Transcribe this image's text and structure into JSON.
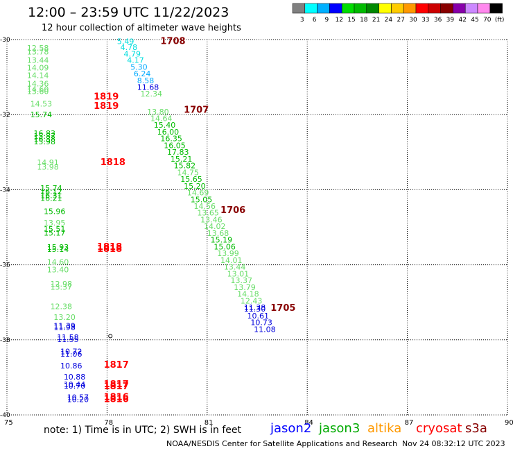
{
  "header": {
    "title": "12:00 – 23:59 UTC 11/22/2023",
    "subtitle": "12 hour collection of altimeter wave heights"
  },
  "legend_scale": {
    "labels": [
      "3",
      "6",
      "9",
      "12",
      "15",
      "18",
      "21",
      "24",
      "27",
      "30",
      "33",
      "36",
      "39",
      "42",
      "45",
      "70",
      "(ft)"
    ],
    "colors": [
      "#808080",
      "#00ffff",
      "#00b0ff",
      "#0000ff",
      "#00dd00",
      "#00bb00",
      "#008800",
      "#ffff00",
      "#ffcc00",
      "#ff9900",
      "#ff0000",
      "#cc0000",
      "#880000",
      "#8800aa",
      "#cc88ff",
      "#ff88ee",
      "#000000"
    ]
  },
  "footer": {
    "note": "note:  1) Time is in UTC; 2) SWH is in feet",
    "satellites": [
      {
        "name": "jason2",
        "color": "#0000ff"
      },
      {
        "name": "jason3",
        "color": "#00aa00"
      },
      {
        "name": "altika",
        "color": "#ff9900"
      },
      {
        "name": "cryosat",
        "color": "#ff0000"
      },
      {
        "name": "s3a",
        "color": "#880000"
      }
    ],
    "credit": "NOAA/NESDIS Center for Satellite Applications and Research",
    "timestamp": "Nov 24 08:32:12 UTC 2023"
  },
  "chart_data": {
    "type": "scatter",
    "xlim": [
      75,
      90
    ],
    "ylim": [
      -40,
      -30
    ],
    "x_ticks": [
      "75",
      "78",
      "81",
      "84",
      "87",
      "90"
    ],
    "y_ticks": [
      "-30",
      "-32",
      "-34",
      "-36",
      "-38",
      "-40"
    ],
    "grid": true,
    "points": [
      {
        "x": 75.6,
        "y": -30.3,
        "v": "12.58",
        "c": "#66dd66"
      },
      {
        "x": 75.6,
        "y": -30.4,
        "v": "13.78",
        "c": "#66dd66"
      },
      {
        "x": 75.6,
        "y": -30.62,
        "v": "13.44",
        "c": "#66dd66"
      },
      {
        "x": 75.6,
        "y": -30.82,
        "v": "14.09",
        "c": "#66dd66"
      },
      {
        "x": 75.6,
        "y": -31.03,
        "v": "14.14",
        "c": "#66dd66"
      },
      {
        "x": 75.6,
        "y": -31.25,
        "v": "14.36",
        "c": "#66dd66"
      },
      {
        "x": 75.6,
        "y": -31.4,
        "v": "14.60",
        "c": "#66dd66"
      },
      {
        "x": 75.6,
        "y": -31.45,
        "v": "13.60",
        "c": "#66dd66"
      },
      {
        "x": 75.7,
        "y": -31.78,
        "v": "14.53",
        "c": "#66dd66"
      },
      {
        "x": 75.7,
        "y": -32.07,
        "v": "15.74",
        "c": "#00bb00"
      },
      {
        "x": 75.8,
        "y": -32.57,
        "v": "16.83",
        "c": "#00bb00"
      },
      {
        "x": 75.8,
        "y": -32.64,
        "v": "15.87",
        "c": "#00bb00"
      },
      {
        "x": 75.8,
        "y": -32.72,
        "v": "16.38",
        "c": "#00bb00"
      },
      {
        "x": 75.8,
        "y": -32.79,
        "v": "15.98",
        "c": "#00bb00"
      },
      {
        "x": 75.9,
        "y": -33.35,
        "v": "14.91",
        "c": "#66dd66"
      },
      {
        "x": 75.9,
        "y": -33.47,
        "v": "13.98",
        "c": "#66dd66"
      },
      {
        "x": 76.0,
        "y": -34.03,
        "v": "15.74",
        "c": "#00bb00"
      },
      {
        "x": 76.0,
        "y": -34.12,
        "v": "16.12",
        "c": "#00bb00"
      },
      {
        "x": 76.0,
        "y": -34.22,
        "v": "16.31",
        "c": "#00bb00"
      },
      {
        "x": 76.0,
        "y": -34.3,
        "v": "16.21",
        "c": "#00bb00"
      },
      {
        "x": 76.1,
        "y": -34.65,
        "v": "15.96",
        "c": "#00bb00"
      },
      {
        "x": 76.1,
        "y": -34.95,
        "v": "13.95",
        "c": "#66dd66"
      },
      {
        "x": 76.1,
        "y": -35.12,
        "v": "15.51",
        "c": "#00bb00"
      },
      {
        "x": 76.1,
        "y": -35.22,
        "v": "15.17",
        "c": "#00bb00"
      },
      {
        "x": 76.2,
        "y": -35.6,
        "v": "15.93",
        "c": "#00bb00"
      },
      {
        "x": 76.2,
        "y": -35.66,
        "v": "15.14",
        "c": "#00bb00"
      },
      {
        "x": 76.2,
        "y": -36.0,
        "v": "14.60",
        "c": "#66dd66"
      },
      {
        "x": 76.2,
        "y": -36.2,
        "v": "13.40",
        "c": "#66dd66"
      },
      {
        "x": 76.3,
        "y": -36.58,
        "v": "12.98",
        "c": "#66dd66"
      },
      {
        "x": 76.3,
        "y": -36.66,
        "v": "13.37",
        "c": "#66dd66"
      },
      {
        "x": 76.3,
        "y": -37.18,
        "v": "12.38",
        "c": "#66dd66"
      },
      {
        "x": 76.4,
        "y": -37.47,
        "v": "13.20",
        "c": "#66dd66"
      },
      {
        "x": 76.4,
        "y": -37.7,
        "v": "11.39",
        "c": "#0000dd"
      },
      {
        "x": 76.4,
        "y": -37.74,
        "v": "11.98",
        "c": "#0000dd"
      },
      {
        "x": 76.5,
        "y": -38.0,
        "v": "11.58",
        "c": "#0000dd"
      },
      {
        "x": 76.5,
        "y": -38.06,
        "v": "11.55",
        "c": "#0000dd"
      },
      {
        "x": 76.6,
        "y": -38.38,
        "v": "10.72",
        "c": "#0000dd"
      },
      {
        "x": 76.6,
        "y": -38.45,
        "v": "11.06",
        "c": "#0000dd"
      },
      {
        "x": 76.6,
        "y": -38.76,
        "v": "10.86",
        "c": "#0000dd"
      },
      {
        "x": 76.7,
        "y": -39.06,
        "v": "10.88",
        "c": "#0000dd"
      },
      {
        "x": 76.7,
        "y": -39.26,
        "v": "10.44",
        "c": "#0000dd"
      },
      {
        "x": 76.7,
        "y": -39.3,
        "v": "10.70",
        "c": "#0000dd"
      },
      {
        "x": 76.8,
        "y": -39.6,
        "v": "10.57",
        "c": "#0000dd"
      },
      {
        "x": 76.8,
        "y": -39.66,
        "v": "10.20",
        "c": "#0000dd"
      },
      {
        "x": 77.6,
        "y": -31.6,
        "v": "1819",
        "c": "#ff0000",
        "big": true
      },
      {
        "x": 77.6,
        "y": -31.85,
        "v": "1819",
        "c": "#ff0000",
        "big": true
      },
      {
        "x": 77.8,
        "y": -33.35,
        "v": "1818",
        "c": "#ff0000",
        "big": true
      },
      {
        "x": 77.7,
        "y": -35.6,
        "v": "1818",
        "c": "#ff0000",
        "big": true
      },
      {
        "x": 77.7,
        "y": -35.66,
        "v": "1818",
        "c": "#ff0000",
        "big": true
      },
      {
        "x": 77.9,
        "y": -38.74,
        "v": "1817",
        "c": "#ff0000",
        "big": true
      },
      {
        "x": 77.9,
        "y": -39.26,
        "v": "1817",
        "c": "#ff0000",
        "big": true
      },
      {
        "x": 77.9,
        "y": -39.32,
        "v": "1817",
        "c": "#ff0000",
        "big": true
      },
      {
        "x": 77.9,
        "y": -39.6,
        "v": "1816",
        "c": "#ff0000",
        "big": true
      },
      {
        "x": 77.9,
        "y": -39.66,
        "v": "1816",
        "c": "#ff0000",
        "big": true
      },
      {
        "x": 78.3,
        "y": -30.12,
        "v": "5.49",
        "c": "#00dddd"
      },
      {
        "x": 78.4,
        "y": -30.28,
        "v": "4.78",
        "c": "#00dddd"
      },
      {
        "x": 78.5,
        "y": -30.45,
        "v": "4.79",
        "c": "#00dddd"
      },
      {
        "x": 78.6,
        "y": -30.62,
        "v": "4.17",
        "c": "#00dddd"
      },
      {
        "x": 78.7,
        "y": -30.8,
        "v": "5.30",
        "c": "#00aaff"
      },
      {
        "x": 78.8,
        "y": -30.98,
        "v": "6.24",
        "c": "#00aaff"
      },
      {
        "x": 78.9,
        "y": -31.16,
        "v": "8.58",
        "c": "#00aaff"
      },
      {
        "x": 78.9,
        "y": -31.34,
        "v": "11.68",
        "c": "#0000dd"
      },
      {
        "x": 79.0,
        "y": -31.52,
        "v": "12.34",
        "c": "#66dd66"
      },
      {
        "x": 79.6,
        "y": -30.12,
        "v": "1708",
        "c": "#880000",
        "big": true
      },
      {
        "x": 79.2,
        "y": -32.0,
        "v": "13.80",
        "c": "#66dd66"
      },
      {
        "x": 79.3,
        "y": -32.17,
        "v": "14.64",
        "c": "#66dd66"
      },
      {
        "x": 79.4,
        "y": -32.35,
        "v": "15.40",
        "c": "#00bb00"
      },
      {
        "x": 79.5,
        "y": -32.53,
        "v": "16.00",
        "c": "#00bb00"
      },
      {
        "x": 79.6,
        "y": -32.71,
        "v": "16.35",
        "c": "#00bb00"
      },
      {
        "x": 79.7,
        "y": -32.89,
        "v": "16.05",
        "c": "#00bb00"
      },
      {
        "x": 79.8,
        "y": -33.07,
        "v": "17.83",
        "c": "#00bb00"
      },
      {
        "x": 79.9,
        "y": -33.25,
        "v": "15.21",
        "c": "#00bb00"
      },
      {
        "x": 80.0,
        "y": -33.43,
        "v": "15.82",
        "c": "#00bb00"
      },
      {
        "x": 80.1,
        "y": -33.61,
        "v": "14.75",
        "c": "#66dd66"
      },
      {
        "x": 80.2,
        "y": -33.79,
        "v": "15.65",
        "c": "#00bb00"
      },
      {
        "x": 80.3,
        "y": -33.97,
        "v": "15.20",
        "c": "#00bb00"
      },
      {
        "x": 80.4,
        "y": -34.15,
        "v": "14.69",
        "c": "#66dd66"
      },
      {
        "x": 80.5,
        "y": -34.33,
        "v": "15.05",
        "c": "#00bb00"
      },
      {
        "x": 80.6,
        "y": -34.51,
        "v": "14.56",
        "c": "#66dd66"
      },
      {
        "x": 80.7,
        "y": -34.69,
        "v": "13.65",
        "c": "#66dd66"
      },
      {
        "x": 80.3,
        "y": -31.95,
        "v": "1707",
        "c": "#880000",
        "big": true
      },
      {
        "x": 80.8,
        "y": -34.87,
        "v": "13.46",
        "c": "#66dd66"
      },
      {
        "x": 80.9,
        "y": -35.05,
        "v": "14.02",
        "c": "#66dd66"
      },
      {
        "x": 81.0,
        "y": -35.23,
        "v": "13.68",
        "c": "#66dd66"
      },
      {
        "x": 81.1,
        "y": -35.41,
        "v": "15.19",
        "c": "#00bb00"
      },
      {
        "x": 81.2,
        "y": -35.59,
        "v": "15.06",
        "c": "#00bb00"
      },
      {
        "x": 81.3,
        "y": -35.77,
        "v": "13.99",
        "c": "#66dd66"
      },
      {
        "x": 81.4,
        "y": -35.95,
        "v": "14.01",
        "c": "#66dd66"
      },
      {
        "x": 81.5,
        "y": -36.13,
        "v": "13.44",
        "c": "#66dd66"
      },
      {
        "x": 81.4,
        "y": -34.62,
        "v": "1706",
        "c": "#880000",
        "big": true
      },
      {
        "x": 81.6,
        "y": -36.31,
        "v": "13.01",
        "c": "#66dd66"
      },
      {
        "x": 81.7,
        "y": -36.49,
        "v": "13.37",
        "c": "#66dd66"
      },
      {
        "x": 81.8,
        "y": -36.67,
        "v": "13.79",
        "c": "#66dd66"
      },
      {
        "x": 81.9,
        "y": -36.85,
        "v": "14.18",
        "c": "#66dd66"
      },
      {
        "x": 82.0,
        "y": -37.03,
        "v": "12.43",
        "c": "#66dd66"
      },
      {
        "x": 82.1,
        "y": -37.21,
        "v": "11.38",
        "c": "#0000dd"
      },
      {
        "x": 82.1,
        "y": -37.25,
        "v": "11.30",
        "c": "#0000dd"
      },
      {
        "x": 82.2,
        "y": -37.43,
        "v": "10.61",
        "c": "#0000dd"
      },
      {
        "x": 82.3,
        "y": -37.61,
        "v": "10.73",
        "c": "#0000dd"
      },
      {
        "x": 82.4,
        "y": -37.79,
        "v": "11.08",
        "c": "#0000dd"
      },
      {
        "x": 82.9,
        "y": -37.23,
        "v": "1705",
        "c": "#880000",
        "big": true
      }
    ]
  }
}
